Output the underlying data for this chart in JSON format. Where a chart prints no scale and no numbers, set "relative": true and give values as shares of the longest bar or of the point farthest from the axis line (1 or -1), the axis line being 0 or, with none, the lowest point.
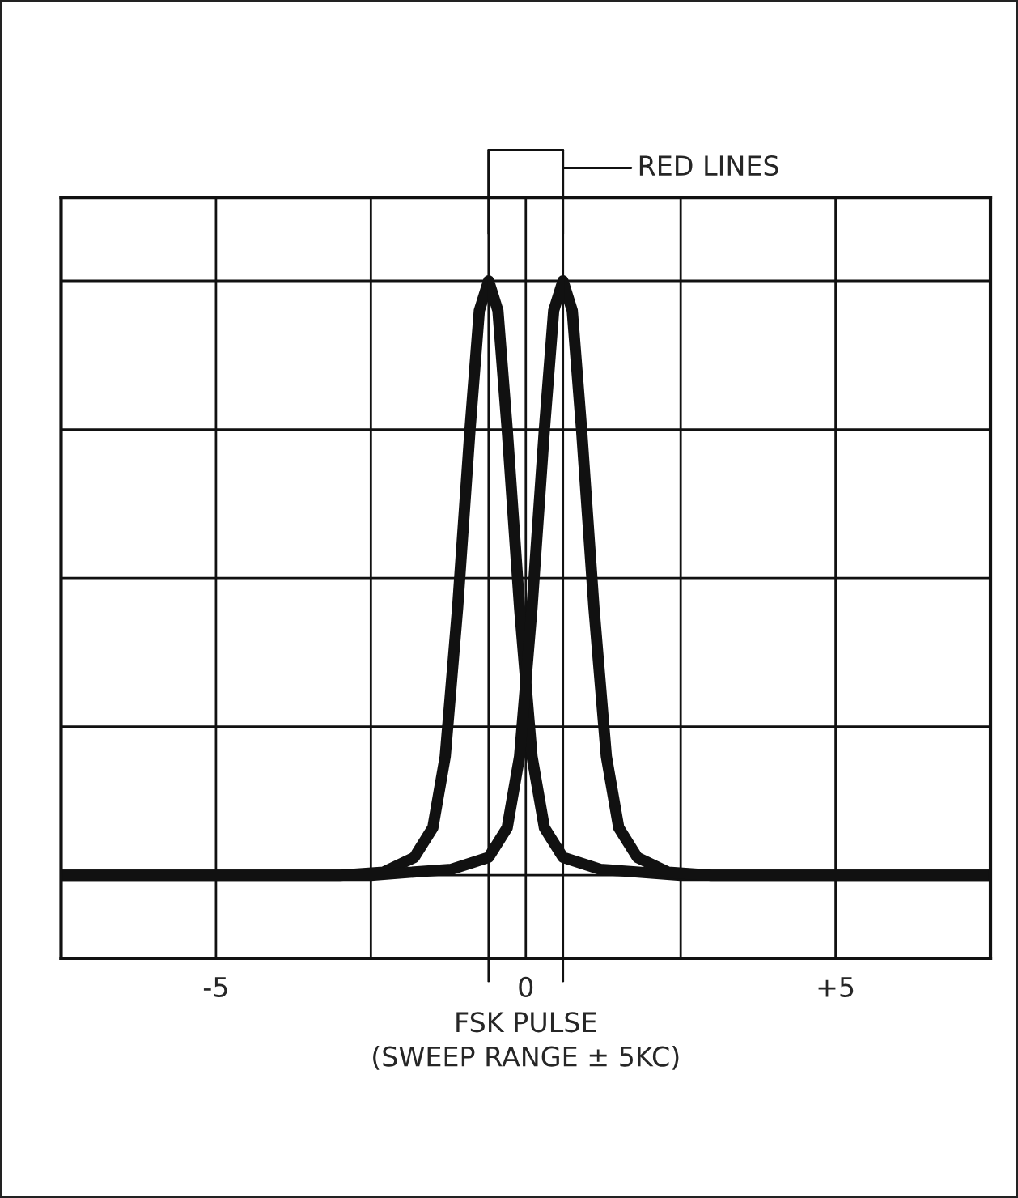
{
  "chart_data": {
    "type": "line",
    "relative": true,
    "xlabel": "FSK PULSE\n(SWEEP RANGE ± 5KC)",
    "xlim": [
      -7.5,
      7.5
    ],
    "xticks": [
      -5,
      {
        "value": -2.5,
        "label": null
      },
      0,
      {
        "value": 2.5,
        "label": null
      },
      {
        "value": 5,
        "label": "+5"
      }
    ],
    "grid": true,
    "legend": false,
    "series": [
      {
        "color": "#111111",
        "x": [
          -7.5,
          -3,
          -2.3,
          -1.8,
          -1.5,
          -1.3,
          -1.1,
          -0.9,
          -0.75,
          -0.6,
          -0.45,
          -0.3,
          -0.1,
          0.1,
          0.3,
          0.6,
          1.2,
          2.5,
          7.5
        ],
        "values": [
          0,
          0,
          0.005,
          0.03,
          0.08,
          0.2,
          0.45,
          0.75,
          0.95,
          1.0,
          0.95,
          0.75,
          0.45,
          0.2,
          0.08,
          0.03,
          0.01,
          0,
          0
        ]
      },
      {
        "color": "#111111",
        "x": [
          -7.5,
          -2.5,
          -1.2,
          -0.6,
          -0.3,
          -0.1,
          0.1,
          0.3,
          0.45,
          0.6,
          0.75,
          0.9,
          1.1,
          1.3,
          1.5,
          1.8,
          2.3,
          3,
          7.5
        ],
        "values": [
          0,
          0,
          0.01,
          0.03,
          0.08,
          0.2,
          0.45,
          0.75,
          0.95,
          1.0,
          0.95,
          0.75,
          0.45,
          0.2,
          0.08,
          0.03,
          0.005,
          0,
          0
        ]
      }
    ],
    "ref_lines": [
      {
        "axis": "x",
        "value": -0.6,
        "label": "RED LINES",
        "color": "#111111"
      },
      {
        "axis": "x",
        "value": 0.6,
        "label": null,
        "color": "#111111"
      }
    ]
  }
}
